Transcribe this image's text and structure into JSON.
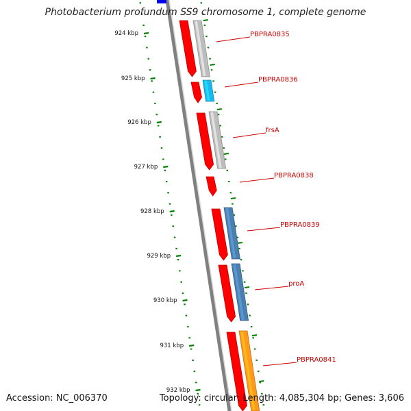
{
  "title": "Photobacterium profundum SS9 chromosome 1, complete genome",
  "accession": "Accession: NC_006370",
  "summary": "Topology: circular; Length: 4,085,304 bp; Genes: 3,606",
  "ruler": [
    "924 kbp",
    "925 kbp",
    "926 kbp",
    "927 kbp",
    "928 kbp",
    "929 kbp",
    "930 kbp",
    "931 kbp",
    "932 kbp"
  ],
  "genes": [
    {
      "label": "PBPRA0835",
      "cds_color": "#ff0000",
      "gene_color": "#bdbdbd"
    },
    {
      "label": "PBPRA0836",
      "cds_color": "#ff0000",
      "gene_color": "#1ab8ee"
    },
    {
      "label": "frsA",
      "cds_color": "#ff0000",
      "gene_color": "#bdbdbd"
    },
    {
      "label": "PBPRA0838",
      "cds_color": "#ff0000",
      "gene_color": null
    },
    {
      "label": "PBPRA0839",
      "cds_color": "#ff0000",
      "gene_color": "#4a7fb0"
    },
    {
      "label": "proA",
      "cds_color": "#ff0000",
      "gene_color": "#4a7fb0"
    },
    {
      "label": "PBPRA0841",
      "cds_color": "#ff0000",
      "gene_color": "#ff9a1a"
    }
  ],
  "colors": {
    "backbone": "#808080",
    "tick": "#008000",
    "label": "#cc0000",
    "top_feature": "#0000ee"
  }
}
